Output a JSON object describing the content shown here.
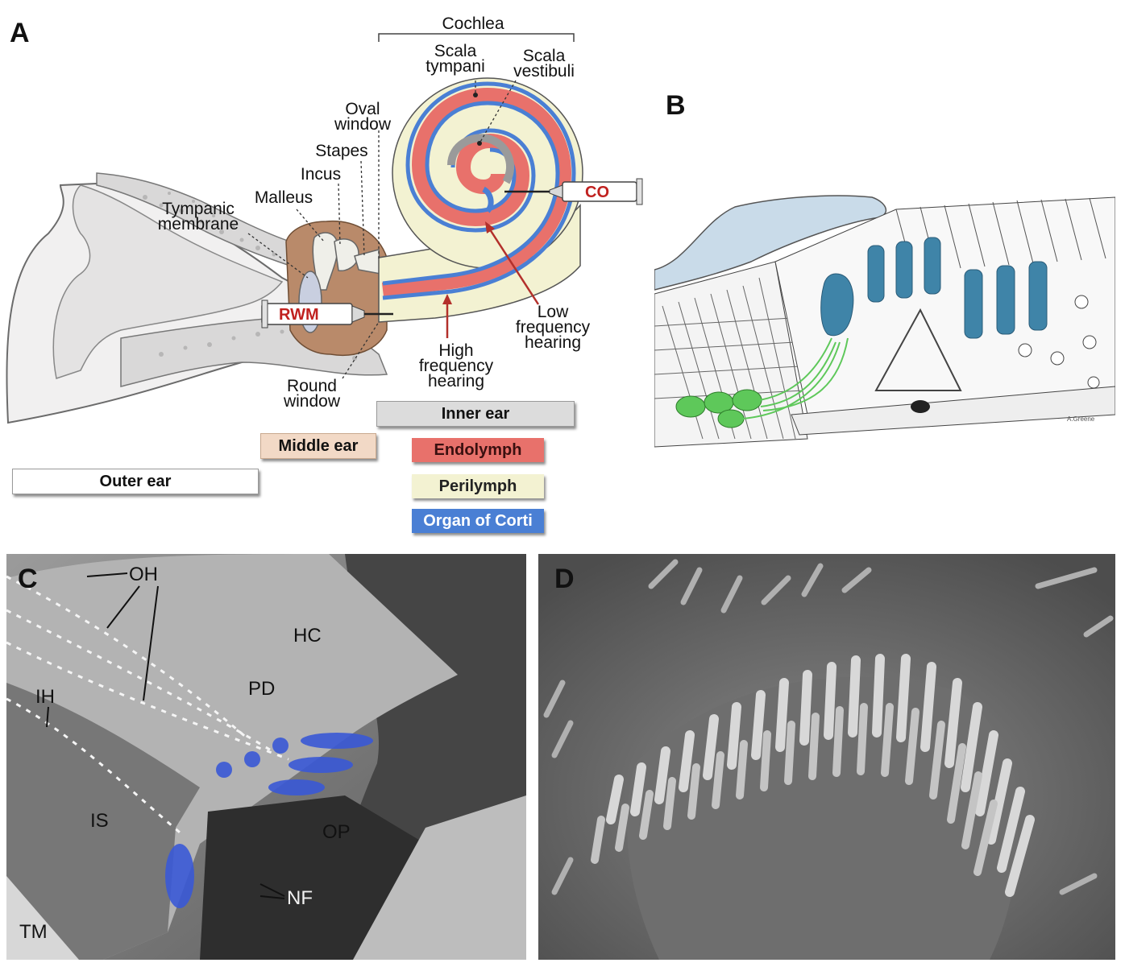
{
  "panels": {
    "a": "A",
    "b": "B",
    "c": "C",
    "d": "D"
  },
  "panel_a": {
    "cochlea": "Cochlea",
    "scala_tympani": "Scala\ntympani",
    "scala_vestibuli": "Scala\nvestibuli",
    "oval_window": "Oval\nwindow",
    "stapes": "Stapes",
    "incus": "Incus",
    "malleus": "Malleus",
    "tympanic_membrane": "Tympanic\nmembrane",
    "round_window": "Round\nwindow",
    "high_frequency": "High\nfrequency\nhearing",
    "low_frequency": "Low\nfrequency\nhearing",
    "rwm": "RWM",
    "co": "CO",
    "legend": {
      "inner_ear": "Inner ear",
      "middle_ear": "Middle ear",
      "outer_ear": "Outer ear",
      "endolymph": "Endolymph",
      "perilymph": "Perilymph",
      "organ_of_corti": "Organ of Corti"
    },
    "colors": {
      "endolymph": "#e8716b",
      "perilymph": "#f3f2d2",
      "organ_of_corti": "#4a7fd4",
      "middle_ear": "#f2d9c6",
      "inner_ear": "#dcdcdc",
      "outer_ear": "#ffffff",
      "bone": "#dad9d9",
      "middle_ear_cavity": "#b98a6a"
    }
  },
  "panel_b": {
    "signature": "A.Greene",
    "colors": {
      "tectorial": "#c9dbe9",
      "hair_cells": "#3f84a8",
      "neurons": "#5ec85a"
    }
  },
  "panel_c": {
    "oh": "OH",
    "ih": "IH",
    "hc": "HC",
    "pd": "PD",
    "is": "IS",
    "op": "OP",
    "nf": "NF",
    "tm": "TM"
  }
}
